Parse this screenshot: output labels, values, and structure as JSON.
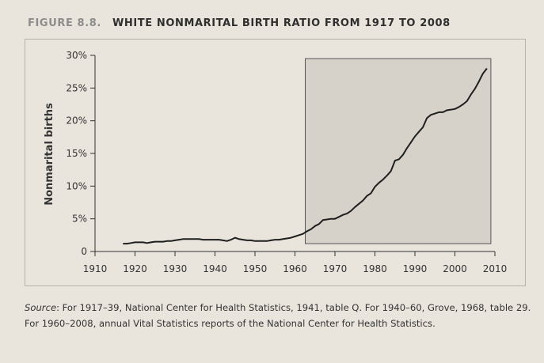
{
  "figure": {
    "label": "FIGURE 8.8.",
    "title": "WHITE NONMARITAL BIRTH RATIO FROM 1917 TO 2008"
  },
  "source": {
    "lead": "Source",
    "text": ": For 1917–39, National Center for Health Statistics, 1941, table Q. For 1940–60, Grove, 1968, table 29. For 1960–2008, annual Vital Statistics reports of the National Center for Health Statistics."
  },
  "colors": {
    "line": "#1e1e1e",
    "shade": "#d6d2ca",
    "axis": "#333333"
  },
  "chart_data": {
    "type": "line",
    "title": "WHITE NONMARITAL BIRTH RATIO FROM 1917 TO 2008",
    "xlabel": "",
    "ylabel": "Nonmarital births",
    "xlim": [
      1907,
      2013
    ],
    "ylim": [
      0,
      30
    ],
    "x_ticks": [
      1910,
      1920,
      1930,
      1940,
      1950,
      1960,
      1970,
      1980,
      1990,
      2000,
      2010
    ],
    "x_tick_labels": [
      "1910",
      "1920",
      "1930",
      "1940",
      "1950",
      "1960",
      "1970",
      "1980",
      "1990",
      "2000",
      "2010"
    ],
    "y_ticks": [
      0,
      5,
      10,
      15,
      20,
      25,
      30
    ],
    "y_tick_labels": [
      "0",
      "5%",
      "10%",
      "15%",
      "20%",
      "25%",
      "30%"
    ],
    "grid": false,
    "shaded_region": {
      "x_start": 1960,
      "x_end": 2008,
      "y_start": 1.2,
      "y_end": 29.5
    },
    "series": [
      {
        "x": [
          1917,
          1918,
          1919,
          1920,
          1921,
          1922,
          1923,
          1924,
          1925,
          1926,
          1927,
          1928,
          1929,
          1930,
          1931,
          1932,
          1933,
          1934,
          1935,
          1936,
          1937,
          1938,
          1939,
          1940,
          1941,
          1942,
          1943,
          1944,
          1945,
          1946,
          1947,
          1948,
          1949,
          1950,
          1951,
          1952,
          1953,
          1954,
          1955,
          1956,
          1957,
          1958,
          1959,
          1960,
          1961,
          1962,
          1963,
          1964,
          1965,
          1966,
          1967,
          1968,
          1969,
          1970,
          1971,
          1972,
          1973,
          1974,
          1975,
          1976,
          1977,
          1978,
          1979,
          1980,
          1981,
          1982,
          1983,
          1984,
          1985,
          1986,
          1987,
          1988,
          1989,
          1990,
          1991,
          1992,
          1993,
          1994,
          1995,
          1996,
          1997,
          1998,
          1999,
          2000,
          2001,
          2002,
          2003,
          2004,
          2005,
          2006,
          2007,
          2008
        ],
        "values": [
          1.2,
          1.2,
          1.3,
          1.4,
          1.4,
          1.4,
          1.3,
          1.4,
          1.5,
          1.5,
          1.5,
          1.6,
          1.6,
          1.7,
          1.8,
          1.9,
          1.9,
          1.9,
          1.9,
          1.9,
          1.8,
          1.8,
          1.8,
          1.8,
          1.8,
          1.7,
          1.6,
          1.8,
          2.1,
          1.9,
          1.8,
          1.7,
          1.7,
          1.6,
          1.6,
          1.6,
          1.6,
          1.7,
          1.8,
          1.8,
          1.9,
          2.0,
          2.1,
          2.3,
          2.5,
          2.7,
          3.1,
          3.4,
          3.9,
          4.2,
          4.8,
          4.9,
          5.0,
          5.0,
          5.3,
          5.6,
          5.8,
          6.2,
          6.8,
          7.3,
          7.8,
          8.5,
          8.9,
          9.9,
          10.5,
          11.0,
          11.6,
          12.3,
          13.9,
          14.1,
          14.8,
          15.8,
          16.7,
          17.6,
          18.3,
          19.0,
          20.4,
          20.9,
          21.1,
          21.3,
          21.3,
          21.6,
          21.7,
          21.8,
          22.1,
          22.5,
          23.0,
          24.0,
          24.9,
          26.0,
          27.2,
          28.0
        ]
      }
    ]
  }
}
